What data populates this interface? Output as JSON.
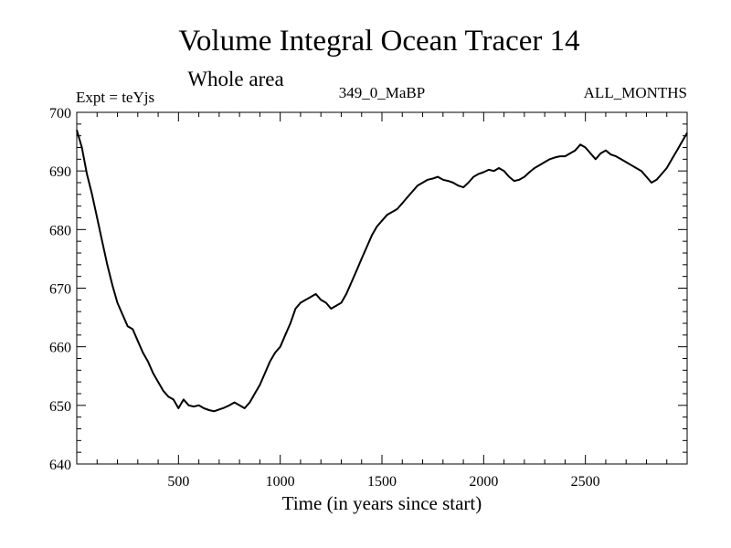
{
  "chart_data": {
    "type": "line",
    "title": "Volume Integral Ocean Tracer 14",
    "subtitle": "Whole area",
    "annotations": {
      "left": "Expt = teYjs",
      "center": "349_0_MaBP",
      "right": "ALL_MONTHS"
    },
    "xlabel": "Time (in years since start)",
    "ylabel": "",
    "xlim": [
      0,
      3000
    ],
    "ylim": [
      640,
      700
    ],
    "x_ticks": [
      500,
      1000,
      1500,
      2000,
      2500
    ],
    "y_ticks": [
      640,
      650,
      660,
      670,
      680,
      690,
      700
    ],
    "grid": false,
    "series": [
      {
        "x": [
          0,
          25,
          50,
          75,
          100,
          125,
          150,
          175,
          200,
          225,
          250,
          275,
          300,
          325,
          350,
          375,
          400,
          425,
          450,
          475,
          500,
          525,
          550,
          575,
          600,
          625,
          650,
          675,
          700,
          725,
          750,
          775,
          800,
          825,
          850,
          875,
          900,
          925,
          950,
          975,
          1000,
          1025,
          1050,
          1075,
          1100,
          1125,
          1150,
          1175,
          1200,
          1225,
          1250,
          1275,
          1300,
          1325,
          1350,
          1375,
          1400,
          1425,
          1450,
          1475,
          1500,
          1525,
          1550,
          1575,
          1600,
          1625,
          1650,
          1675,
          1700,
          1725,
          1750,
          1775,
          1800,
          1825,
          1850,
          1875,
          1900,
          1925,
          1950,
          1975,
          2000,
          2025,
          2050,
          2075,
          2100,
          2125,
          2150,
          2175,
          2200,
          2225,
          2250,
          2275,
          2300,
          2325,
          2350,
          2375,
          2400,
          2425,
          2450,
          2475,
          2500,
          2525,
          2550,
          2575,
          2600,
          2625,
          2650,
          2675,
          2700,
          2725,
          2750,
          2775,
          2800,
          2825,
          2850,
          2875,
          2900,
          2925,
          2950,
          2975,
          3000
        ],
        "y": [
          697,
          694,
          689.5,
          686,
          682,
          678,
          674,
          670.5,
          667.5,
          665.5,
          663.5,
          663,
          661,
          659,
          657.5,
          655.5,
          654,
          652.5,
          651.5,
          651,
          649.5,
          651,
          650,
          649.8,
          650,
          649.5,
          649.2,
          649,
          649.3,
          649.6,
          650,
          650.5,
          650,
          649.5,
          650.5,
          652,
          653.5,
          655.5,
          657.5,
          659,
          660,
          662,
          664,
          666.5,
          667.5,
          668,
          668.5,
          669,
          668,
          667.5,
          666.5,
          667,
          667.5,
          669,
          671,
          673,
          675,
          677,
          679,
          680.5,
          681.5,
          682.5,
          683,
          683.5,
          684.5,
          685.5,
          686.5,
          687.5,
          688,
          688.5,
          688.7,
          689,
          688.5,
          688.3,
          688,
          687.5,
          687.2,
          688,
          689,
          689.5,
          689.8,
          690.2,
          690,
          690.5,
          690,
          689,
          688.3,
          688.5,
          689,
          689.8,
          690.5,
          691,
          691.5,
          692,
          692.3,
          692.5,
          692.5,
          693,
          693.5,
          694.5,
          694,
          693,
          692,
          693,
          693.5,
          692.8,
          692.5,
          692,
          691.5,
          691,
          690.5,
          690,
          689,
          688,
          688.5,
          689.5,
          690.5,
          692,
          693.5,
          695,
          696.5
        ]
      }
    ]
  }
}
